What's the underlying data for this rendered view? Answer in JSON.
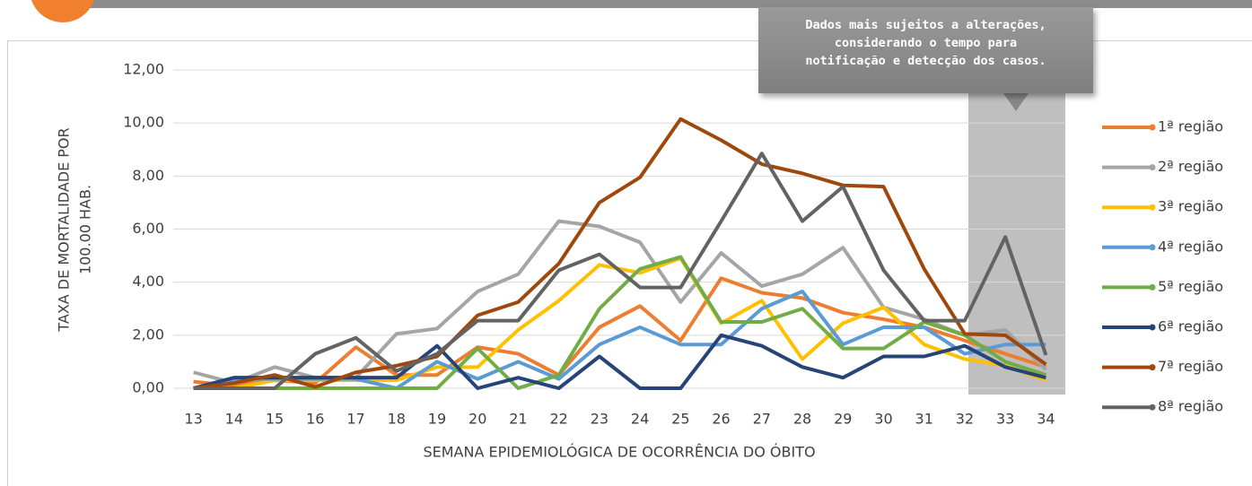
{
  "chart_data": {
    "type": "line",
    "y_label": [
      "TAXA DE MORTALIDADE POR",
      "100.00 HAB."
    ],
    "x_label": "SEMANA EPIDEMIOLÓGICA DE OCORRÊNCIA DO ÓBITO",
    "annotation": [
      "Dados mais sujeitos a alterações,",
      "considerando o tempo para",
      "notificação e detecção dos casos."
    ],
    "categories": [
      "13",
      "14",
      "15",
      "16",
      "17",
      "18",
      "19",
      "20",
      "21",
      "22",
      "23",
      "24",
      "25",
      "26",
      "27",
      "28",
      "29",
      "30",
      "31",
      "32",
      "33",
      "34"
    ],
    "ylim": [
      0,
      12
    ],
    "yticks": [
      {
        "value": 0,
        "label": "0,00"
      },
      {
        "value": 2,
        "label": "2,00"
      },
      {
        "value": 4,
        "label": "4,00"
      },
      {
        "value": 6,
        "label": "6,00"
      },
      {
        "value": 8,
        "label": "8,00"
      },
      {
        "value": 10,
        "label": "10,00"
      },
      {
        "value": 12,
        "label": "12,00"
      }
    ],
    "grid": true,
    "legend": "right",
    "series": [
      {
        "name": "1ª região",
        "color": "#ED7D31",
        "values": [
          0.25,
          0.1,
          0.3,
          0.2,
          1.55,
          0.5,
          0.5,
          1.55,
          1.3,
          0.5,
          2.3,
          3.1,
          1.8,
          4.15,
          3.6,
          3.4,
          2.85,
          2.6,
          2.3,
          1.8,
          1.3,
          0.8
        ]
      },
      {
        "name": "2ª região",
        "color": "#A5A5A5",
        "values": [
          0.6,
          0.2,
          0.8,
          0.4,
          0.4,
          2.05,
          2.25,
          3.65,
          4.3,
          6.3,
          6.1,
          5.5,
          3.25,
          5.1,
          3.85,
          4.3,
          5.3,
          3.05,
          2.6,
          2.0,
          2.2,
          0.7
        ]
      },
      {
        "name": "3ª região",
        "color": "#FFC000",
        "values": [
          0,
          0,
          0.3,
          0.3,
          0.3,
          0.3,
          0.8,
          0.8,
          2.2,
          3.3,
          4.65,
          4.35,
          4.9,
          2.45,
          3.3,
          1.1,
          2.45,
          3.05,
          1.65,
          1.1,
          0.85,
          0.3
        ]
      },
      {
        "name": "4ª região",
        "color": "#5B9BD5",
        "values": [
          0,
          0.35,
          0.35,
          0.35,
          0.35,
          0,
          1.0,
          0.35,
          1.0,
          0.35,
          1.65,
          2.3,
          1.65,
          1.65,
          3.0,
          3.65,
          1.65,
          2.3,
          2.3,
          1.3,
          1.65,
          1.65
        ]
      },
      {
        "name": "5ª região",
        "color": "#70AD47",
        "values": [
          0,
          0,
          0,
          0,
          0,
          0,
          0,
          1.5,
          0,
          0.5,
          3.0,
          4.5,
          4.95,
          2.5,
          2.5,
          3.0,
          1.5,
          1.5,
          2.5,
          2.0,
          1.0,
          0.5
        ]
      },
      {
        "name": "6ª região",
        "color": "#264478",
        "values": [
          0,
          0.4,
          0.4,
          0.4,
          0.4,
          0.4,
          1.6,
          0,
          0.4,
          0,
          1.2,
          0,
          0,
          2.0,
          1.6,
          0.8,
          0.4,
          1.2,
          1.2,
          1.6,
          0.8,
          0.4
        ]
      },
      {
        "name": "7ª região",
        "color": "#9E480E",
        "values": [
          0,
          0.2,
          0.5,
          0.05,
          0.6,
          0.85,
          1.2,
          2.75,
          3.25,
          4.7,
          7.0,
          7.95,
          10.15,
          9.35,
          8.45,
          8.1,
          7.65,
          7.6,
          4.5,
          2.05,
          2.0,
          0.9
        ]
      },
      {
        "name": "8ª região",
        "color": "#636363",
        "values": [
          0,
          0,
          0,
          1.3,
          1.9,
          0.65,
          1.3,
          2.55,
          2.55,
          4.45,
          5.05,
          3.8,
          3.8,
          6.3,
          8.85,
          6.3,
          7.6,
          4.45,
          2.55,
          2.55,
          5.7,
          1.25
        ]
      }
    ]
  }
}
